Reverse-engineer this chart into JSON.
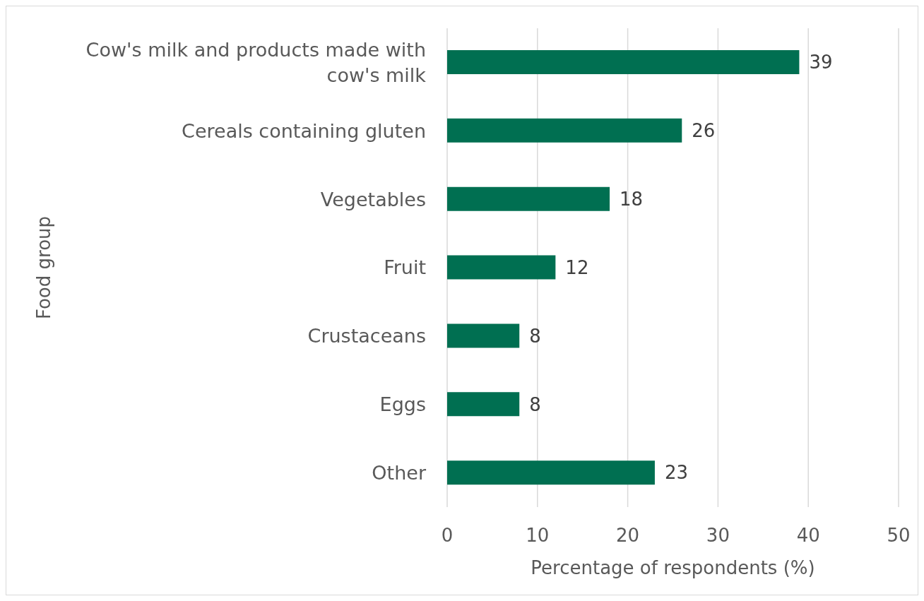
{
  "chart_data": {
    "type": "bar",
    "orientation": "horizontal",
    "xlabel": "Percentage of respondents (%)",
    "ylabel": "Food group",
    "categories": [
      "Cow's milk and products made with cow's milk",
      "Cereals containing gluten",
      "Vegetables",
      "Fruit",
      "Crustaceans",
      "Eggs",
      "Other"
    ],
    "values": [
      39,
      26,
      18,
      12,
      8,
      8,
      23
    ],
    "color": "#006f51",
    "xlim": [
      0,
      50
    ],
    "xticks": [
      0,
      10,
      20,
      30,
      40,
      50
    ],
    "grid": "x",
    "data_labels": true
  }
}
